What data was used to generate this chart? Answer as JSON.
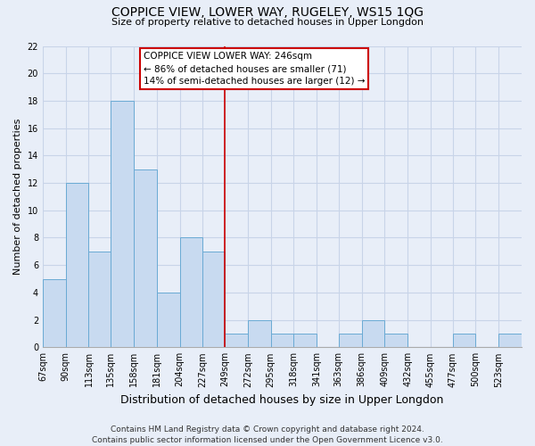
{
  "title": "COPPICE VIEW, LOWER WAY, RUGELEY, WS15 1QG",
  "subtitle": "Size of property relative to detached houses in Upper Longdon",
  "xlabel": "Distribution of detached houses by size in Upper Longdon",
  "ylabel": "Number of detached properties",
  "footer_line1": "Contains HM Land Registry data © Crown copyright and database right 2024.",
  "footer_line2": "Contains public sector information licensed under the Open Government Licence v3.0.",
  "bin_labels": [
    "67sqm",
    "90sqm",
    "113sqm",
    "135sqm",
    "158sqm",
    "181sqm",
    "204sqm",
    "227sqm",
    "249sqm",
    "272sqm",
    "295sqm",
    "318sqm",
    "341sqm",
    "363sqm",
    "386sqm",
    "409sqm",
    "432sqm",
    "455sqm",
    "477sqm",
    "500sqm",
    "523sqm"
  ],
  "bin_edges": [
    67,
    90,
    113,
    135,
    158,
    181,
    204,
    227,
    249,
    272,
    295,
    318,
    341,
    363,
    386,
    409,
    432,
    455,
    477,
    500,
    523,
    546
  ],
  "counts": [
    5,
    12,
    7,
    18,
    13,
    4,
    8,
    7,
    1,
    2,
    1,
    1,
    0,
    1,
    2,
    1,
    0,
    0,
    1,
    0,
    1
  ],
  "bar_facecolor": "#c8daf0",
  "bar_edgecolor": "#6aaad4",
  "reference_line_x": 249,
  "reference_line_color": "#cc0000",
  "annotation_title": "COPPICE VIEW LOWER WAY: 246sqm",
  "annotation_line1": "← 86% of detached houses are smaller (71)",
  "annotation_line2": "14% of semi-detached houses are larger (12) →",
  "annotation_box_facecolor": "#ffffff",
  "annotation_box_edgecolor": "#cc0000",
  "ylim": [
    0,
    22
  ],
  "yticks": [
    0,
    2,
    4,
    6,
    8,
    10,
    12,
    14,
    16,
    18,
    20,
    22
  ],
  "background_color": "#e8eef8",
  "grid_color": "#c8d4e8",
  "title_fontsize": 10,
  "subtitle_fontsize": 8,
  "xlabel_fontsize": 9,
  "ylabel_fontsize": 8,
  "tick_fontsize": 7,
  "footer_fontsize": 6.5
}
